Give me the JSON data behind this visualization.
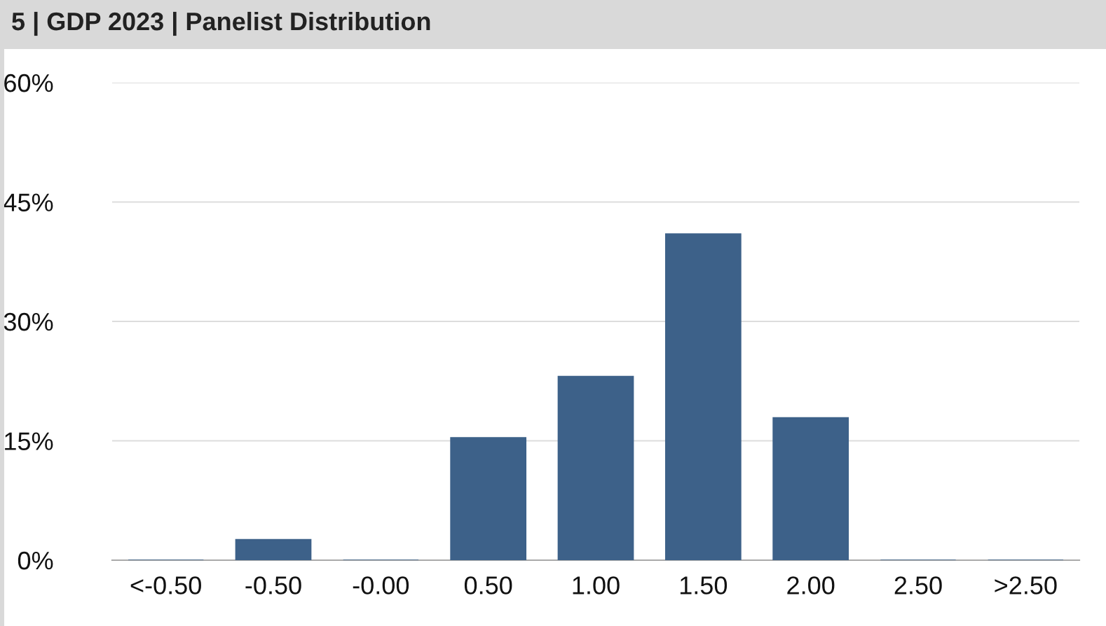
{
  "chart_data": {
    "type": "bar",
    "title": "5 | GDP 2023 | Panelist Distribution",
    "categories": [
      "<-0.50",
      "-0.50",
      "-0.00",
      "0.50",
      "1.00",
      "1.50",
      "2.00",
      "2.50",
      ">2.50"
    ],
    "values": [
      0,
      2.6,
      0,
      15.4,
      23.1,
      41.0,
      17.9,
      0,
      0
    ],
    "color": "#3d6189",
    "ylim": [
      0,
      60
    ],
    "yticks": [
      {
        "value": 0,
        "label": "0%"
      },
      {
        "value": 15,
        "label": "15%"
      },
      {
        "value": 30,
        "label": "30%"
      },
      {
        "value": 45,
        "label": "45%"
      },
      {
        "value": 60,
        "label": "60%"
      }
    ],
    "grid": "y"
  }
}
